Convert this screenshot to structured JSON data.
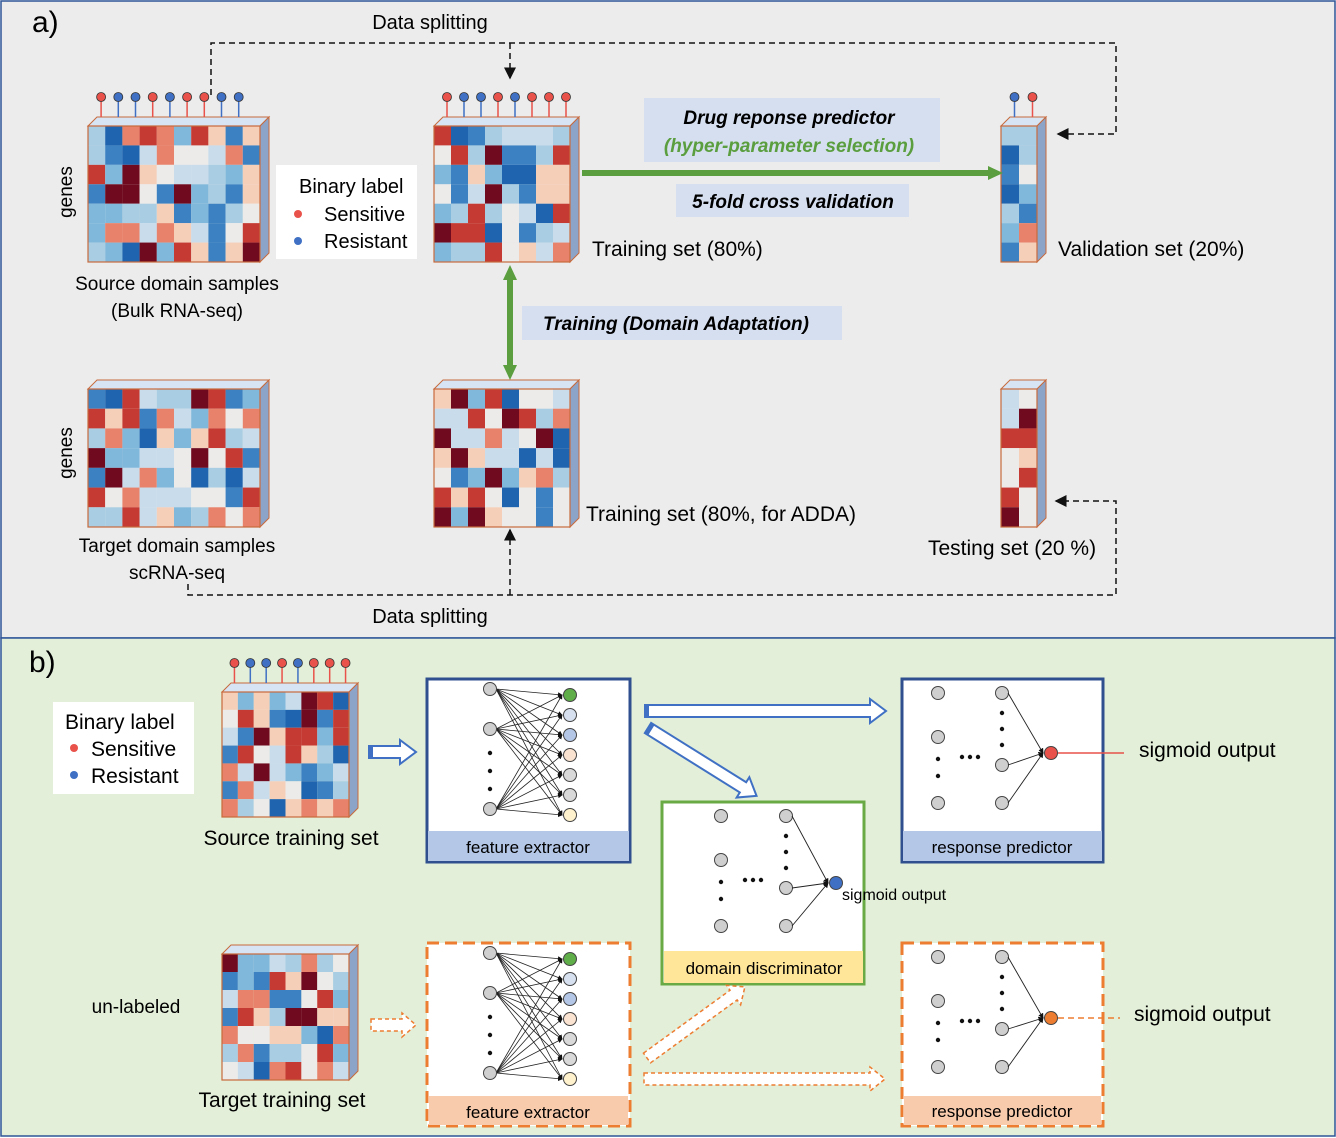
{
  "panel_a": {
    "letter": "a)",
    "data_splitting_top": "Data splitting",
    "data_splitting_bottom": "Data splitting",
    "genes_top": "genes",
    "genes_bottom": "genes",
    "source_caption_1": "Source domain samples",
    "source_caption_2": "(Bulk RNA-seq)",
    "legend": {
      "title": "Binary label",
      "sensitive": "Sensitive",
      "resistant": "Resistant"
    },
    "training_set_label": "Training set (80%)",
    "validation_set_label": "Validation set (20%)",
    "predictor_title": "Drug reponse predictor",
    "predictor_subtitle": "(hyper-parameter selection)",
    "cross_validation": "5-fold cross validation",
    "domain_adaptation": "Training (Domain Adaptation)",
    "target_caption_1": "Target domain samples",
    "target_caption_2": "scRNA-seq",
    "training_adda_label": "Training set (80%, for ADDA)",
    "testing_set_label": "Testing set (20 %)"
  },
  "panel_b": {
    "letter": "b)",
    "legend": {
      "title": "Binary label",
      "sensitive": "Sensitive",
      "resistant": "Resistant"
    },
    "source_training_set": "Source training set",
    "target_training_set": "Target training set",
    "unlabeled": "un-labeled",
    "feature_extractor_top": "feature extractor",
    "feature_extractor_bottom": "feature extractor",
    "response_predictor_top": "response predictor",
    "response_predictor_bottom": "response predictor",
    "domain_discriminator": "domain discriminator",
    "sigmoid_top": "sigmoid output",
    "sigmoid_disc": "sigmoid output",
    "sigmoid_bottom": "sigmoid output"
  },
  "colors": {
    "panel_a_bg": "#ececec",
    "panel_b_bg": "#e3efd9",
    "panel_border": "#2e5597",
    "sensitive": "#e8524a",
    "resistant": "#3f70c4",
    "green_arrow": "#5a9e3f",
    "blue_box": "#2f4f8f",
    "orange_box": "#ed7d31",
    "green_box": "#6aaa45",
    "label_blue": "#b4c7e7",
    "label_orange": "#f8cbad",
    "label_yellow": "#ffe699",
    "callout_bg": "#d6dff0",
    "green_text": "#5a9e3f"
  },
  "icons": [
    "heatmap-icon",
    "neuron-node-icon",
    "arrow-icon"
  ]
}
